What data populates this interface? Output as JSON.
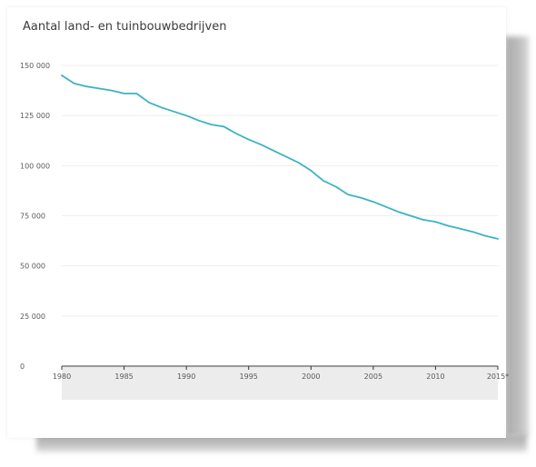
{
  "chart_data": {
    "type": "line",
    "title": "Aantal land- en tuinbouwbedrijven",
    "xlabel": "",
    "ylabel": "",
    "xlim": [
      1980,
      2015
    ],
    "ylim": [
      0,
      150000
    ],
    "yticks": [
      0,
      25000,
      50000,
      75000,
      100000,
      125000,
      150000
    ],
    "ytick_labels": [
      "0",
      "25 000",
      "50 000",
      "75 000",
      "100 000",
      "125 000",
      "150 000"
    ],
    "xticks": [
      1980,
      1985,
      1990,
      1995,
      2000,
      2005,
      2010,
      2015
    ],
    "xtick_labels": [
      "1980",
      "1985",
      "1990",
      "1995",
      "2000",
      "2005",
      "2010",
      "2015*"
    ],
    "grid": true,
    "colors": {
      "line": "#3bb3c3",
      "grid": "#eeeeee",
      "axis": "#333333",
      "xaxis_band": "#ececec"
    },
    "series": [
      {
        "x": [
          1980,
          1981,
          1982,
          1983,
          1984,
          1985,
          1986,
          1987,
          1988,
          1989,
          1990,
          1991,
          1992,
          1993,
          1994,
          1995,
          1996,
          1997,
          1998,
          1999,
          2000,
          2001,
          2002,
          2003,
          2004,
          2005,
          2006,
          2007,
          2008,
          2009,
          2010,
          2011,
          2012,
          2013,
          2014,
          2015
        ],
        "values": [
          145000,
          141000,
          139500,
          138500,
          137500,
          136000,
          136000,
          131500,
          129000,
          127000,
          125000,
          122500,
          120500,
          119500,
          116000,
          113000,
          110500,
          107500,
          104500,
          101500,
          97500,
          92500,
          89500,
          85500,
          84000,
          82000,
          79500,
          77000,
          75000,
          73000,
          72000,
          70000,
          68500,
          67000,
          65000,
          63500
        ]
      }
    ]
  }
}
